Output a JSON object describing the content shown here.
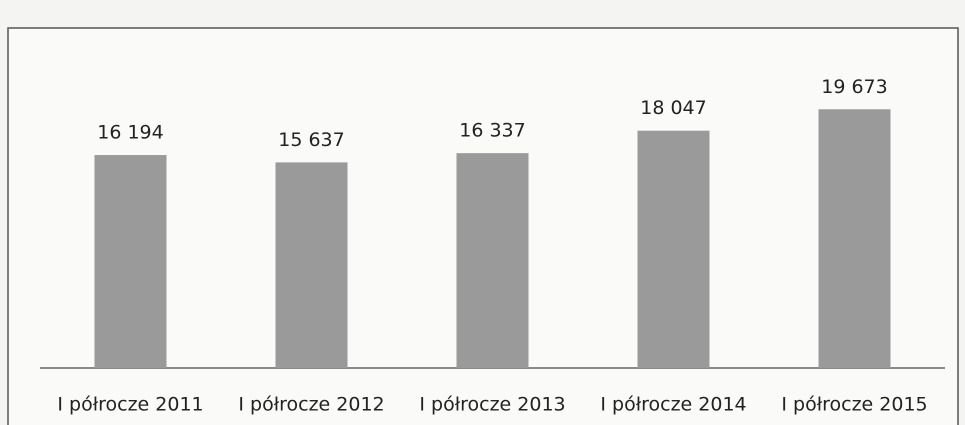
{
  "chart_data": {
    "type": "bar",
    "categories": [
      "I półrocze 2011",
      "I półrocze 2012",
      "I półrocze 2013",
      "I półrocze 2014",
      "I półrocze 2015"
    ],
    "values": [
      16194,
      15637,
      16337,
      18047,
      19673
    ],
    "value_labels": [
      "16 194",
      "15 637",
      "16 337",
      "18 047",
      "19 673"
    ],
    "color": "#9a9a9a"
  }
}
